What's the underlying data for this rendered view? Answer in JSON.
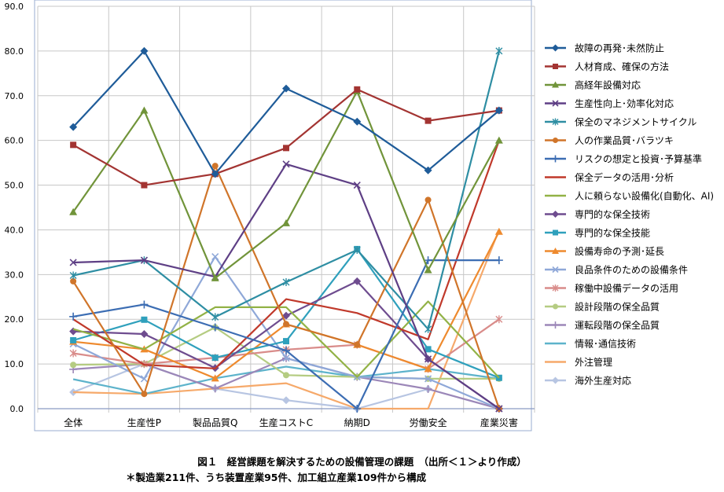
{
  "chart_data": {
    "type": "line",
    "categories": [
      "全体",
      "生産性P",
      "製品品質Q",
      "生産コストC",
      "納期D",
      "労働安全",
      "産業災害"
    ],
    "ylim": [
      0,
      90
    ],
    "yticks": [
      "0.0",
      "10.0",
      "20.0",
      "30.0",
      "40.0",
      "50.0",
      "60.0",
      "70.0",
      "80.0",
      "90.0"
    ],
    "grid": true,
    "legend_position": "right",
    "series": [
      {
        "name": "故障の再発･未然防止",
        "color": "#1F5C99",
        "marker": "diamond",
        "values": [
          63.0,
          80.0,
          52.5,
          71.6,
          64.2,
          53.3,
          66.7
        ]
      },
      {
        "name": "人材育成、確保の方法",
        "color": "#A33432",
        "marker": "square",
        "values": [
          59.0,
          50.0,
          52.5,
          58.3,
          71.4,
          64.4,
          66.7
        ]
      },
      {
        "name": "高経年設備対応",
        "color": "#71943A",
        "marker": "triangle",
        "values": [
          44.0,
          66.7,
          29.2,
          41.5,
          71.0,
          31.0,
          60.0
        ]
      },
      {
        "name": "生産性向上･効率化対応",
        "color": "#5E3F85",
        "marker": "x",
        "values": [
          32.7,
          33.2,
          29.5,
          54.7,
          50.0,
          11.1,
          0.0
        ]
      },
      {
        "name": "保全のマネジメントサイクル",
        "color": "#2E8EA3",
        "marker": "star",
        "values": [
          29.8,
          33.2,
          20.5,
          28.3,
          35.5,
          17.8,
          80.0
        ]
      },
      {
        "name": "人の作業品質･バラツキ",
        "color": "#D0752A",
        "marker": "circle",
        "values": [
          28.5,
          3.3,
          54.3,
          18.9,
          14.3,
          46.7,
          0.0
        ]
      },
      {
        "name": "リスクの想定と投資･予算基準",
        "color": "#3C6DB3",
        "marker": "plus",
        "values": [
          20.6,
          23.3,
          18.2,
          13.0,
          0.0,
          33.2,
          33.2
        ]
      },
      {
        "name": "保全データの活用･分析",
        "color": "#C0392B",
        "marker": "none",
        "values": [
          20.0,
          9.8,
          9.0,
          24.5,
          21.4,
          15.5,
          60.0
        ]
      },
      {
        "name": "人に頼らない設備化(自動化、AI)",
        "color": "#92B246",
        "marker": "none",
        "values": [
          17.8,
          13.3,
          22.7,
          22.7,
          7.1,
          24.0,
          6.9
        ]
      },
      {
        "name": "専門的な保全技術",
        "color": "#6E4C8F",
        "marker": "diamond",
        "values": [
          17.3,
          16.7,
          9.1,
          20.8,
          28.5,
          11.1,
          0.0
        ]
      },
      {
        "name": "専門的な保全技能",
        "color": "#2FA0BC",
        "marker": "square",
        "values": [
          15.3,
          19.9,
          11.4,
          15.1,
          35.7,
          13.3,
          6.9
        ]
      },
      {
        "name": "設備寿命の予測･延長",
        "color": "#EE8A2E",
        "marker": "triangle",
        "values": [
          15.0,
          13.3,
          6.8,
          18.9,
          14.3,
          8.9,
          39.6
        ]
      },
      {
        "name": "良品条件のための設備条件",
        "color": "#8FA8D8",
        "marker": "x",
        "values": [
          14.5,
          6.7,
          34.0,
          11.3,
          7.1,
          6.7,
          0.0
        ]
      },
      {
        "name": "稼働中設備データの活用",
        "color": "#D98C8A",
        "marker": "star",
        "values": [
          12.4,
          10.0,
          11.4,
          13.2,
          14.3,
          8.9,
          20.0
        ]
      },
      {
        "name": "設計段階の保全品質",
        "color": "#B5CC82",
        "marker": "circle",
        "values": [
          9.8,
          10.0,
          18.2,
          7.5,
          7.1,
          6.7,
          6.7
        ]
      },
      {
        "name": "運転段階の保全品質",
        "color": "#9C87B8",
        "marker": "plus",
        "values": [
          8.8,
          10.0,
          4.5,
          11.3,
          7.1,
          4.4,
          0.0
        ]
      },
      {
        "name": "情報･通信技術",
        "color": "#5DB3CB",
        "marker": "none",
        "values": [
          6.6,
          3.3,
          6.8,
          9.4,
          7.1,
          8.9,
          6.7
        ]
      },
      {
        "name": "外注管理",
        "color": "#F6A96A",
        "marker": "none",
        "values": [
          3.7,
          3.3,
          4.5,
          5.7,
          0.0,
          0.0,
          40.0
        ]
      },
      {
        "name": "海外生産対応",
        "color": "#B7C5E2",
        "marker": "diamond",
        "values": [
          3.7,
          10.0,
          4.5,
          1.9,
          0.0,
          4.4,
          0.0
        ]
      }
    ]
  },
  "caption": {
    "line1": "図１　経営課題を解決するための設備管理の課題　（出所＜１＞より作成）",
    "line2": "＊製造業211件、うち装置産業95件、加工組立産業109件から構成"
  }
}
